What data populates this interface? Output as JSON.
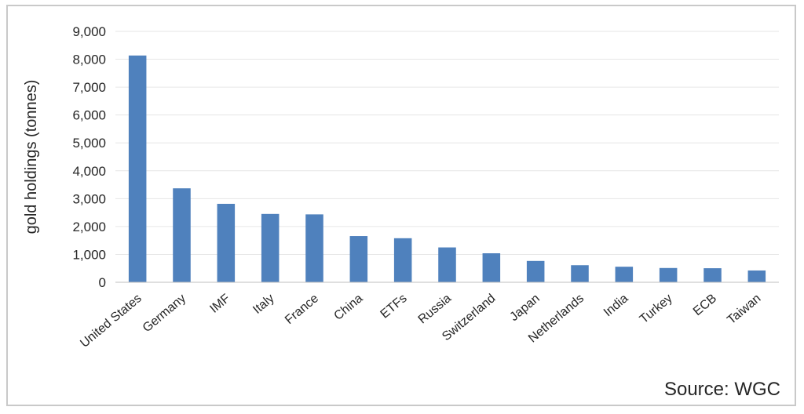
{
  "chart_data": {
    "type": "bar",
    "categories": [
      "United States",
      "Germany",
      "IMF",
      "Italy",
      "France",
      "China",
      "ETFs",
      "Russia",
      "Switzerland",
      "Japan",
      "Netherlands",
      "India",
      "Turkey",
      "ECB",
      "Taiwan"
    ],
    "values": [
      8134,
      3370,
      2814,
      2452,
      2436,
      1658,
      1580,
      1250,
      1040,
      765,
      612,
      558,
      512,
      504,
      423
    ],
    "ylabel": "gold holdings (tonnes)",
    "xlabel": "",
    "ylim": [
      0,
      9000
    ],
    "yticks": [
      "0",
      "1,000",
      "2,000",
      "3,000",
      "4,000",
      "5,000",
      "6,000",
      "7,000",
      "8,000",
      "9,000"
    ],
    "ytick_values": [
      0,
      1000,
      2000,
      3000,
      4000,
      5000,
      6000,
      7000,
      8000,
      9000
    ],
    "grid": true,
    "bar_color": "#4f81bd",
    "grid_color": "#e6e6e6",
    "source": "Source: WGC"
  }
}
